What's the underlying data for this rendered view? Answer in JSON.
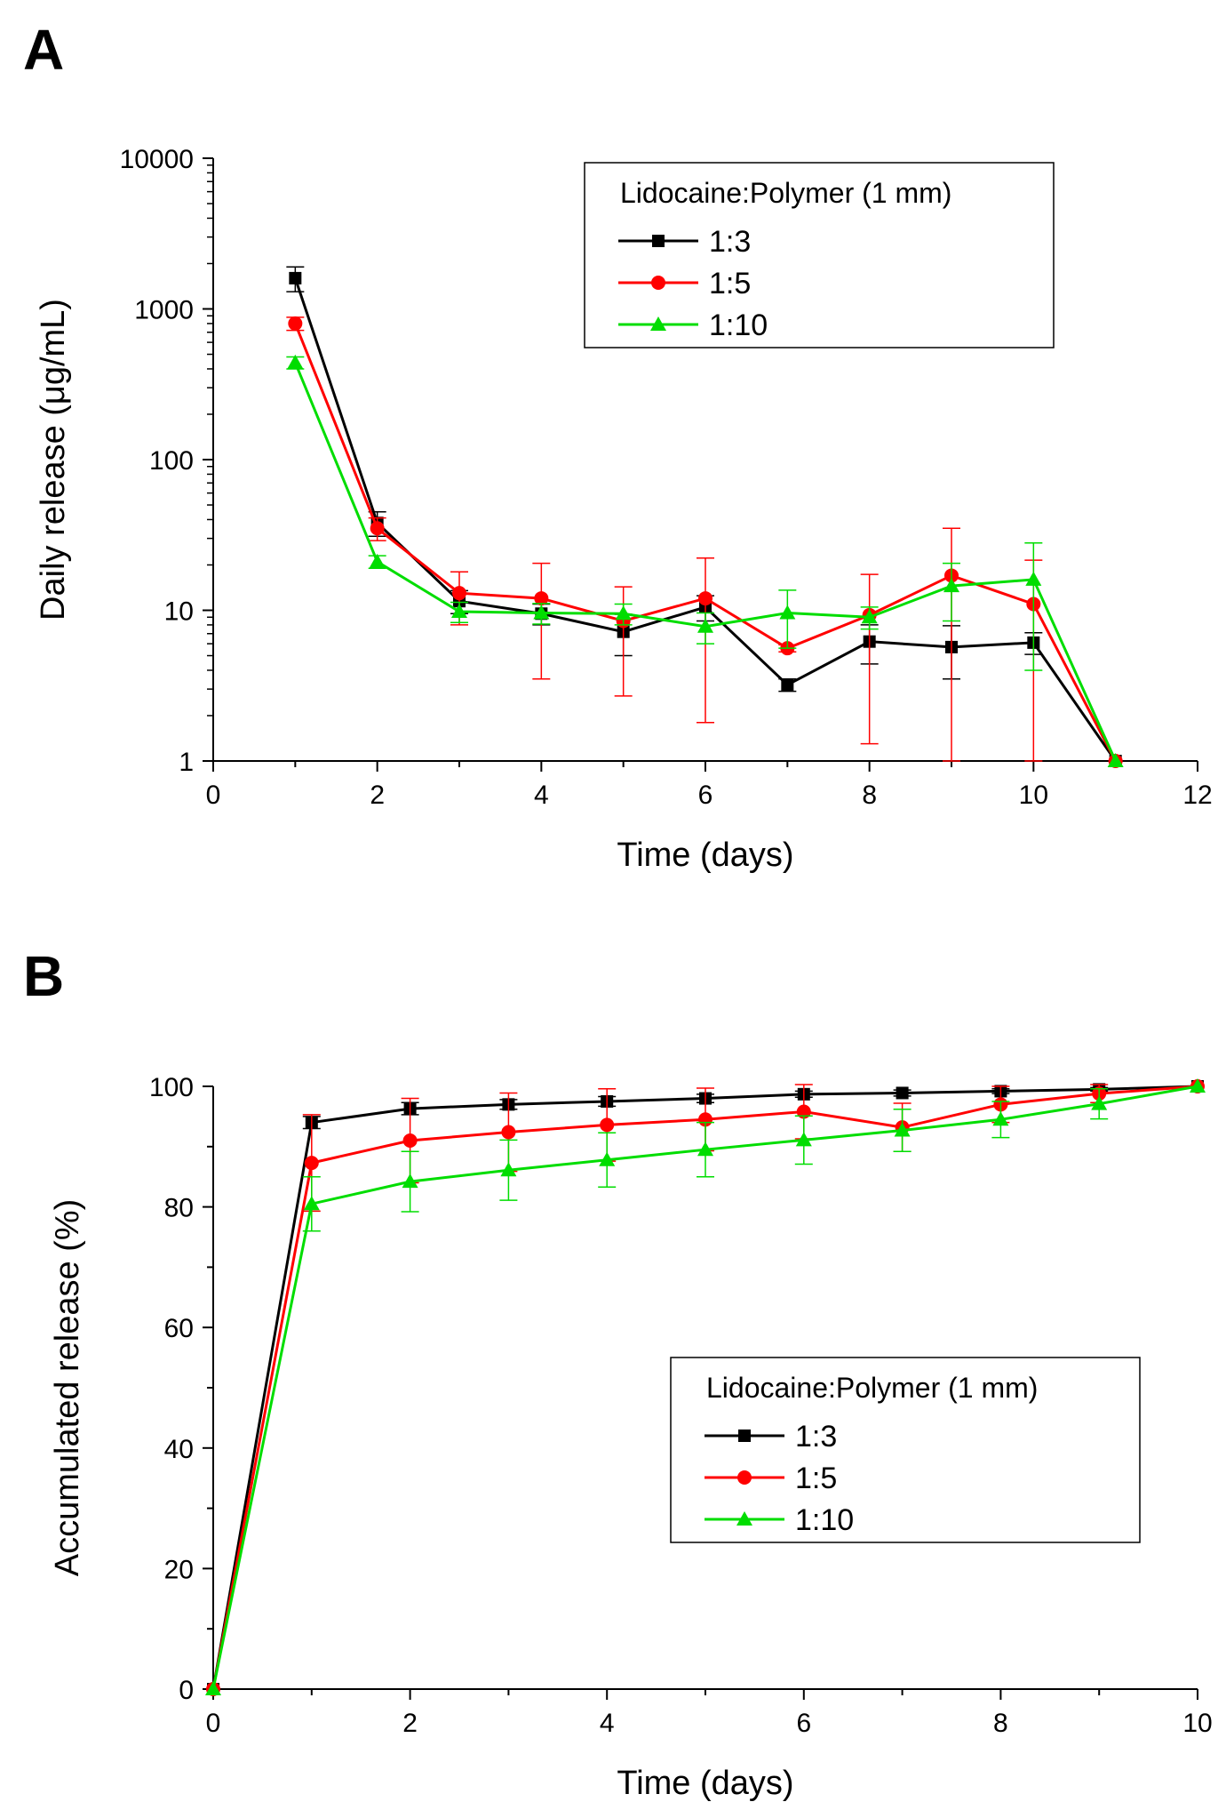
{
  "chart_data": [
    {
      "type": "line",
      "panel": "A",
      "xlabel": "Time (days)",
      "ylabel": "Daily release (μg/mL)",
      "xlim": [
        0,
        12
      ],
      "ylim": [
        1,
        10000
      ],
      "yscale": "log",
      "xticks": [
        0,
        2,
        4,
        6,
        8,
        10,
        12
      ],
      "xtick_labels": [
        "0",
        "2",
        "4",
        "6",
        "8",
        "10",
        "12"
      ],
      "yticks": [
        1,
        10,
        100,
        1000,
        10000
      ],
      "ytick_labels": [
        "1",
        "10",
        "100",
        "1000",
        "10000"
      ],
      "legend": {
        "title": "Lidocaine:Polymer (1 mm)",
        "position": "top-right"
      },
      "series": [
        {
          "name": "1:3",
          "color": "#000000",
          "marker": "square",
          "x": [
            1,
            2,
            3,
            4,
            5,
            6,
            7,
            8,
            9,
            10,
            11
          ],
          "y": [
            1600,
            38,
            11.5,
            9.5,
            7.2,
            10.5,
            3.2,
            6.2,
            5.7,
            6.1,
            1
          ],
          "yerr": [
            300,
            7,
            2,
            1.5,
            2.2,
            2,
            0.3,
            1.8,
            2.2,
            1,
            0
          ]
        },
        {
          "name": "1:5",
          "color": "#ff0000",
          "marker": "circle",
          "x": [
            1,
            2,
            3,
            4,
            5,
            6,
            7,
            8,
            9,
            10,
            11
          ],
          "y": [
            800,
            35,
            13,
            12,
            8.5,
            12,
            5.6,
            9.3,
            17,
            11,
            1
          ],
          "yerr": [
            80,
            6,
            5,
            8.5,
            5.8,
            10.2,
            0.3,
            8,
            18,
            10.5,
            0
          ]
        },
        {
          "name": "1:10",
          "color": "#00dd00",
          "marker": "triangle",
          "x": [
            1,
            2,
            3,
            4,
            5,
            6,
            7,
            8,
            9,
            10,
            11
          ],
          "y": [
            440,
            21,
            9.8,
            9.6,
            9.5,
            7.8,
            9.6,
            9,
            14.5,
            16,
            1
          ],
          "yerr": [
            40,
            2,
            1.5,
            1.5,
            1.5,
            1.8,
            4,
            1.5,
            6,
            12,
            0
          ]
        }
      ]
    },
    {
      "type": "line",
      "panel": "B",
      "xlabel": "Time (days)",
      "ylabel": "Accumulated release (%)",
      "xlim": [
        0,
        10
      ],
      "ylim": [
        0,
        100
      ],
      "yscale": "linear",
      "xticks": [
        0,
        2,
        4,
        6,
        8,
        10
      ],
      "xtick_labels": [
        "0",
        "2",
        "4",
        "6",
        "8",
        "10"
      ],
      "yticks": [
        0,
        20,
        40,
        60,
        80,
        100
      ],
      "ytick_labels": [
        "0",
        "20",
        "40",
        "60",
        "80",
        "100"
      ],
      "legend": {
        "title": "Lidocaine:Polymer (1 mm)",
        "position": "center-right"
      },
      "series": [
        {
          "name": "1:3",
          "color": "#000000",
          "marker": "square",
          "x": [
            0,
            1,
            2,
            3,
            4,
            5,
            6,
            7,
            8,
            9,
            10
          ],
          "y": [
            0,
            94,
            96.3,
            97,
            97.5,
            98,
            98.7,
            98.9,
            99.2,
            99.5,
            100
          ],
          "yerr": [
            0,
            1,
            1,
            0.8,
            0.8,
            0.7,
            0.5,
            0.5,
            0.4,
            0.3,
            0
          ]
        },
        {
          "name": "1:5",
          "color": "#ff0000",
          "marker": "circle",
          "x": [
            0,
            1,
            2,
            3,
            4,
            5,
            6,
            7,
            8,
            9,
            10
          ],
          "y": [
            0,
            87.3,
            91,
            92.4,
            93.6,
            94.5,
            95.8,
            93.2,
            97,
            98.8,
            100
          ],
          "yerr": [
            0,
            8,
            7,
            6.5,
            6,
            5.2,
            4.5,
            4,
            3,
            1.5,
            0
          ]
        },
        {
          "name": "1:10",
          "color": "#00dd00",
          "marker": "triangle",
          "x": [
            0,
            1,
            2,
            3,
            4,
            5,
            6,
            7,
            8,
            9,
            10
          ],
          "y": [
            0,
            80.5,
            84.2,
            86.1,
            87.8,
            89.5,
            91.1,
            92.7,
            94.5,
            97.1,
            100
          ],
          "yerr": [
            0,
            4.5,
            5,
            5,
            4.5,
            4.5,
            4,
            3.5,
            3,
            2.5,
            0
          ]
        }
      ]
    }
  ]
}
